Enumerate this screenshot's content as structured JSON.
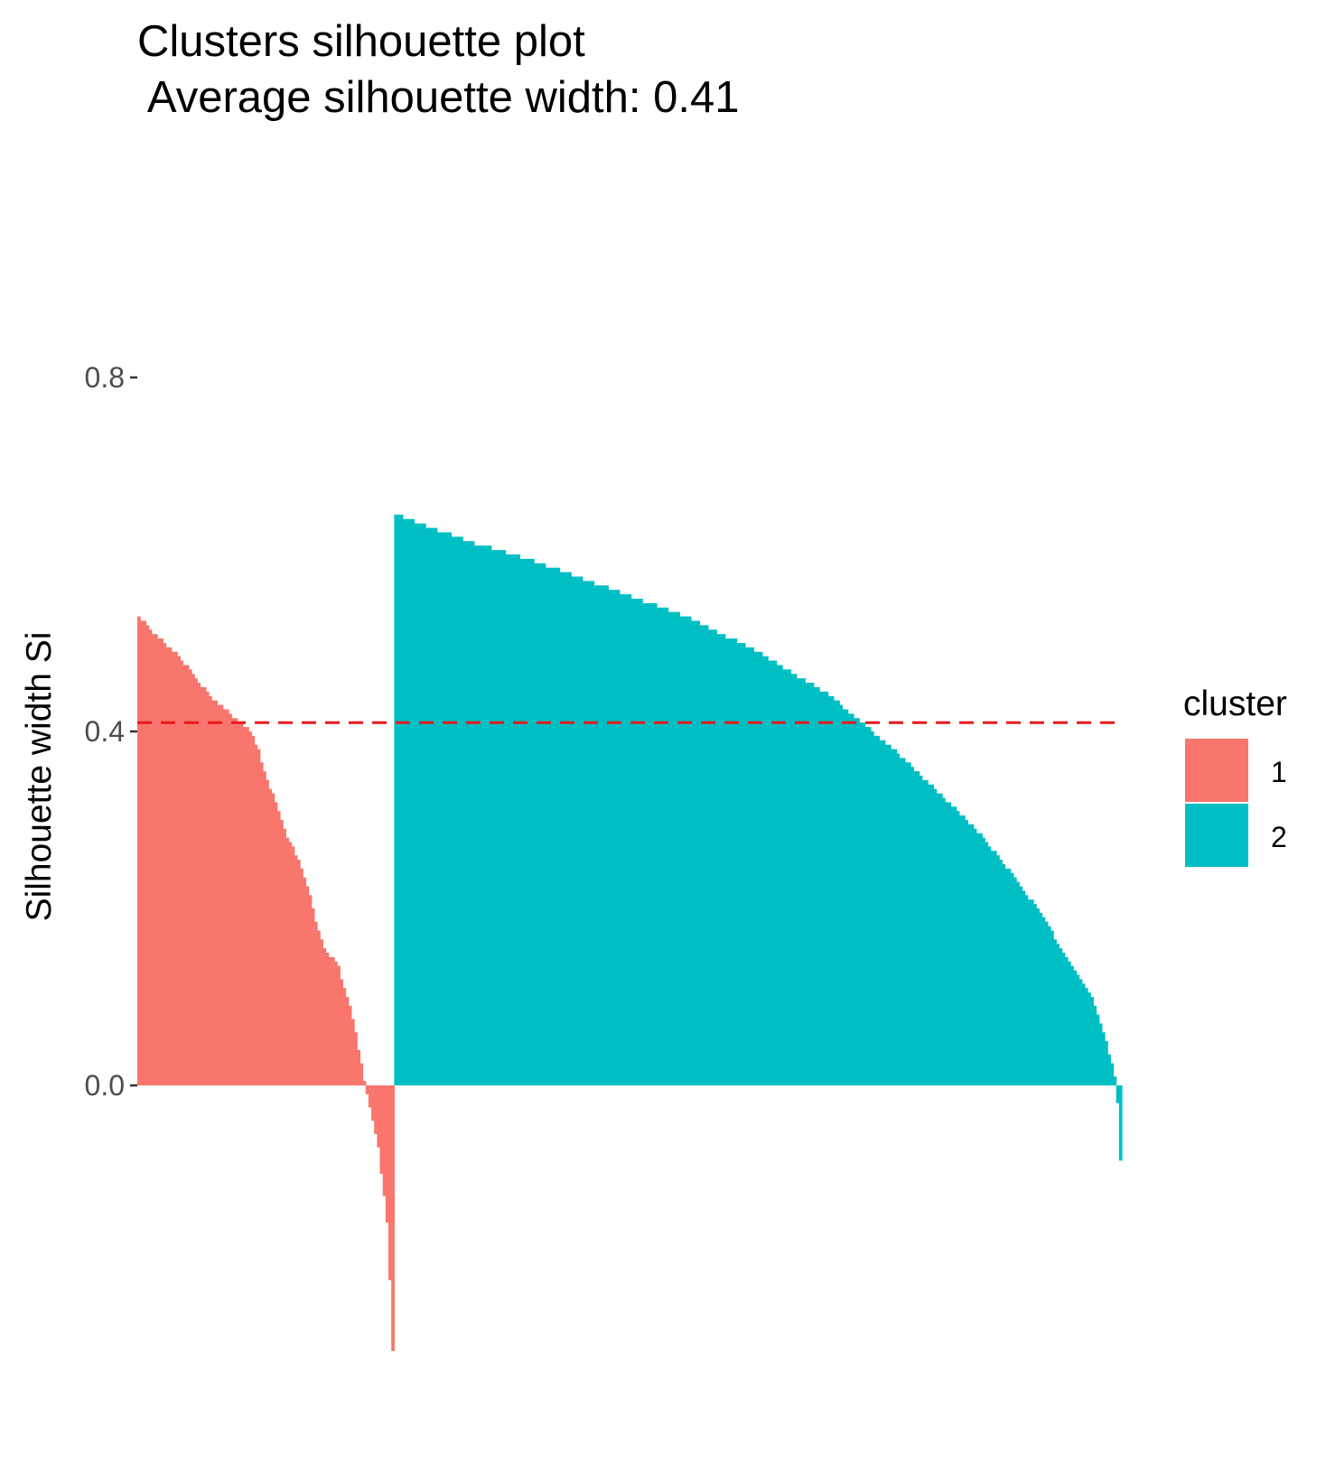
{
  "chart_data": {
    "type": "bar",
    "title": "Clusters silhouette plot",
    "subtitle": " Average silhouette width: 0.41",
    "xlabel": "",
    "ylabel": "Silhouette width Si",
    "ylim": [
      -0.3,
      0.8
    ],
    "y_ticks": [
      {
        "value": 0.0,
        "label": "0.0"
      },
      {
        "value": 0.4,
        "label": "0.4"
      },
      {
        "value": 0.8,
        "label": "0.8"
      }
    ],
    "grid": false,
    "reference_line": {
      "value": 0.41,
      "style": "dashed",
      "color": "#E8191C"
    },
    "legend": {
      "title": "cluster",
      "placement": "right",
      "entries": [
        {
          "label": "1",
          "color": "#F8766D"
        },
        {
          "label": "2",
          "color": "#00BFC4"
        }
      ]
    },
    "series": [
      {
        "cluster": "1",
        "color": "#F8766D",
        "sorted": "descending",
        "count": 90,
        "profile": [
          [
            0.0,
            0.53
          ],
          [
            0.06,
            0.51
          ],
          [
            0.14,
            0.49
          ],
          [
            0.2,
            0.47
          ],
          [
            0.28,
            0.44
          ],
          [
            0.36,
            0.42
          ],
          [
            0.44,
            0.4
          ],
          [
            0.47,
            0.38
          ],
          [
            0.5,
            0.35
          ],
          [
            0.54,
            0.32
          ],
          [
            0.57,
            0.29
          ],
          [
            0.62,
            0.26
          ],
          [
            0.67,
            0.22
          ],
          [
            0.7,
            0.18
          ],
          [
            0.74,
            0.15
          ],
          [
            0.78,
            0.14
          ],
          [
            0.8,
            0.12
          ],
          [
            0.82,
            0.1
          ],
          [
            0.84,
            0.08
          ],
          [
            0.86,
            0.05
          ],
          [
            0.88,
            0.02
          ],
          [
            0.89,
            0.0
          ],
          [
            0.9,
            -0.01
          ],
          [
            0.92,
            -0.04
          ],
          [
            0.94,
            -0.06
          ],
          [
            0.96,
            -0.11
          ],
          [
            0.98,
            -0.16
          ],
          [
            1.0,
            -0.3
          ]
        ]
      },
      {
        "cluster": "2",
        "color": "#00BFC4",
        "sorted": "descending",
        "count": 255,
        "profile": [
          [
            0.0,
            0.645
          ],
          [
            0.1,
            0.615
          ],
          [
            0.2,
            0.59
          ],
          [
            0.3,
            0.56
          ],
          [
            0.4,
            0.53
          ],
          [
            0.5,
            0.49
          ],
          [
            0.6,
            0.44
          ],
          [
            0.7,
            0.37
          ],
          [
            0.8,
            0.29
          ],
          [
            0.86,
            0.23
          ],
          [
            0.9,
            0.18
          ],
          [
            0.93,
            0.14
          ],
          [
            0.96,
            0.1
          ],
          [
            0.98,
            0.05
          ],
          [
            0.99,
            0.02
          ],
          [
            0.995,
            0.0
          ],
          [
            1.0,
            -0.085
          ]
        ]
      }
    ]
  }
}
